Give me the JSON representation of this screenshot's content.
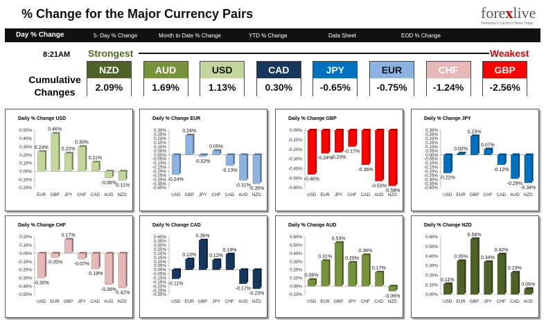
{
  "header": {
    "title": "% Change for the Major Currency Pairs",
    "logo_a": "fore",
    "logo_x": "x",
    "logo_b": "live",
    "logo_sub": "Tomorrow's Currency News Today"
  },
  "nav": {
    "items": [
      "Day % Change",
      "5- Day % Change",
      "Month to Date % Change",
      "YTD % Change",
      "Data Sheet",
      "EOD % Change"
    ]
  },
  "summary": {
    "time": "8:21AM",
    "strongest": "Strongest",
    "weakest": "Weakest",
    "cumulative_label": "Cumulative Changes",
    "boxes": [
      {
        "currency": "NZD",
        "value": "2.09%",
        "color": "#4f6228",
        "text": "#fff"
      },
      {
        "currency": "AUD",
        "value": "1.69%",
        "color": "#77933c",
        "text": "#fff"
      },
      {
        "currency": "USD",
        "value": "1.13%",
        "color": "#c3d69b",
        "text": "#111"
      },
      {
        "currency": "CAD",
        "value": "0.30%",
        "color": "#17375e",
        "text": "#fff"
      },
      {
        "currency": "JPY",
        "value": "-0.65%",
        "color": "#0070c0",
        "text": "#fff"
      },
      {
        "currency": "EUR",
        "value": "-0.75%",
        "color": "#8db3e2",
        "text": "#111"
      },
      {
        "currency": "CHF",
        "value": "-1.24%",
        "color": "#e6b9b8",
        "text": "#fff"
      },
      {
        "currency": "GBP",
        "value": "-2.56%",
        "color": "#ff0000",
        "text": "#fff"
      }
    ]
  },
  "chart_data": [
    {
      "type": "bar",
      "title": "Daily % Change USD",
      "categories": [
        "EUR",
        "GBP",
        "JPY",
        "CHF",
        "CAD",
        "AUD",
        "NZD"
      ],
      "values": [
        0.24,
        0.46,
        0.22,
        0.3,
        0.11,
        -0.08,
        -0.11
      ],
      "labels": [
        "0.24%",
        "0.46%",
        "0.22%",
        "0.30%",
        "0.11%",
        "-0.08%",
        "-0.11%"
      ],
      "ylim": [
        -0.2,
        0.5
      ],
      "step": 0.1,
      "decimals": 2,
      "color": "#c3d69b"
    },
    {
      "type": "bar",
      "title": "Daily % Change EUR",
      "categories": [
        "USD",
        "GBP",
        "JPY",
        "CHF",
        "CAD",
        "AUD",
        "NZD"
      ],
      "values": [
        -0.24,
        0.24,
        -0.02,
        0.05,
        -0.13,
        -0.31,
        -0.35
      ],
      "labels": [
        "-0.24%",
        "0.24%",
        "-0.02%",
        "0.05%",
        "-0.13%",
        "-0.31%",
        "-0.35%"
      ],
      "ylim": [
        -0.4,
        0.3
      ],
      "step": 0.05,
      "decimals": 2,
      "color": "#8db3e2"
    },
    {
      "type": "bar",
      "title": "Daily % Change GBP",
      "categories": [
        "USD",
        "EUR",
        "JPY",
        "CHF",
        "CAD",
        "AUD",
        "NZD"
      ],
      "values": [
        -0.46,
        -0.24,
        -0.23,
        -0.17,
        -0.36,
        -0.53,
        -0.58
      ],
      "labels": [
        "-0.46%",
        "-0.24%",
        "-0.23%",
        "-0.17%",
        "-0.36%",
        "-0.53%",
        "-0.58%"
      ],
      "ylim": [
        -0.6,
        0.0
      ],
      "step": 0.1,
      "decimals": 2,
      "color": "#ff0000"
    },
    {
      "type": "bar",
      "title": "Daily % Change JPY",
      "categories": [
        "USD",
        "EUR",
        "GBP",
        "CHF",
        "CAD",
        "AUD",
        "NZD"
      ],
      "values": [
        -0.22,
        0.02,
        0.23,
        0.07,
        -0.12,
        -0.29,
        -0.34
      ],
      "labels": [
        "-0.22%",
        "0.02%",
        "0.23%",
        "0.07%",
        "-0.12%",
        "-0.29%",
        "-0.34%"
      ],
      "ylim": [
        -0.4,
        0.3
      ],
      "step": 0.05,
      "decimals": 2,
      "color": "#0070c0"
    },
    {
      "type": "bar",
      "title": "Daily % Change CHF",
      "categories": [
        "USD",
        "EUR",
        "GBP",
        "JPY",
        "CAD",
        "AUD",
        "NZD"
      ],
      "values": [
        -0.3,
        -0.05,
        0.17,
        -0.07,
        -0.19,
        -0.38,
        -0.42
      ],
      "labels": [
        "-0.30%",
        "-0.05%",
        "0.17%",
        "-0.07%",
        "-0.19%",
        "-0.38%",
        "-0.42%"
      ],
      "ylim": [
        -0.5,
        0.2
      ],
      "step": 0.1,
      "decimals": 2,
      "color": "#e6b9b8"
    },
    {
      "type": "bar",
      "title": "Daily % Change CAD",
      "categories": [
        "USD",
        "EUR",
        "GBP",
        "JPY",
        "CHF",
        "AUD",
        "NZD"
      ],
      "values": [
        -0.11,
        0.13,
        0.36,
        0.12,
        0.19,
        -0.17,
        -0.23
      ],
      "labels": [
        "-0.11%",
        "0.13%",
        "0.36%",
        "0.12%",
        "0.19%",
        "-0.17%",
        "-0.23%"
      ],
      "ylim": [
        -0.3,
        0.4
      ],
      "step": 0.05,
      "decimals": 2,
      "color": "#17375e"
    },
    {
      "type": "bar",
      "title": "Daily % Change AUD",
      "categories": [
        "USD",
        "EUR",
        "GBP",
        "JPY",
        "CHF",
        "CAD",
        "NZD"
      ],
      "values": [
        0.08,
        0.31,
        0.53,
        0.29,
        0.38,
        0.17,
        -0.06
      ],
      "labels": [
        "0.08%",
        "0.31%",
        "0.53%",
        "0.29%",
        "0.38%",
        "0.17%",
        "-0.06%"
      ],
      "ylim": [
        -0.1,
        0.6
      ],
      "step": 0.1,
      "decimals": 2,
      "color": "#77933c"
    },
    {
      "type": "bar",
      "title": "Daily % Change NZD",
      "categories": [
        "USD",
        "EUR",
        "GBP",
        "JPY",
        "CHF",
        "CAD",
        "AUD"
      ],
      "values": [
        0.11,
        0.35,
        0.58,
        0.34,
        0.42,
        0.23,
        0.06
      ],
      "labels": [
        "0.11%",
        "0.35%",
        "0.58%",
        "0.34%",
        "0.42%",
        "0.23%",
        "0.06%"
      ],
      "ylim": [
        0.0,
        0.6
      ],
      "step": 0.1,
      "decimals": 2,
      "color": "#4f6228"
    }
  ]
}
